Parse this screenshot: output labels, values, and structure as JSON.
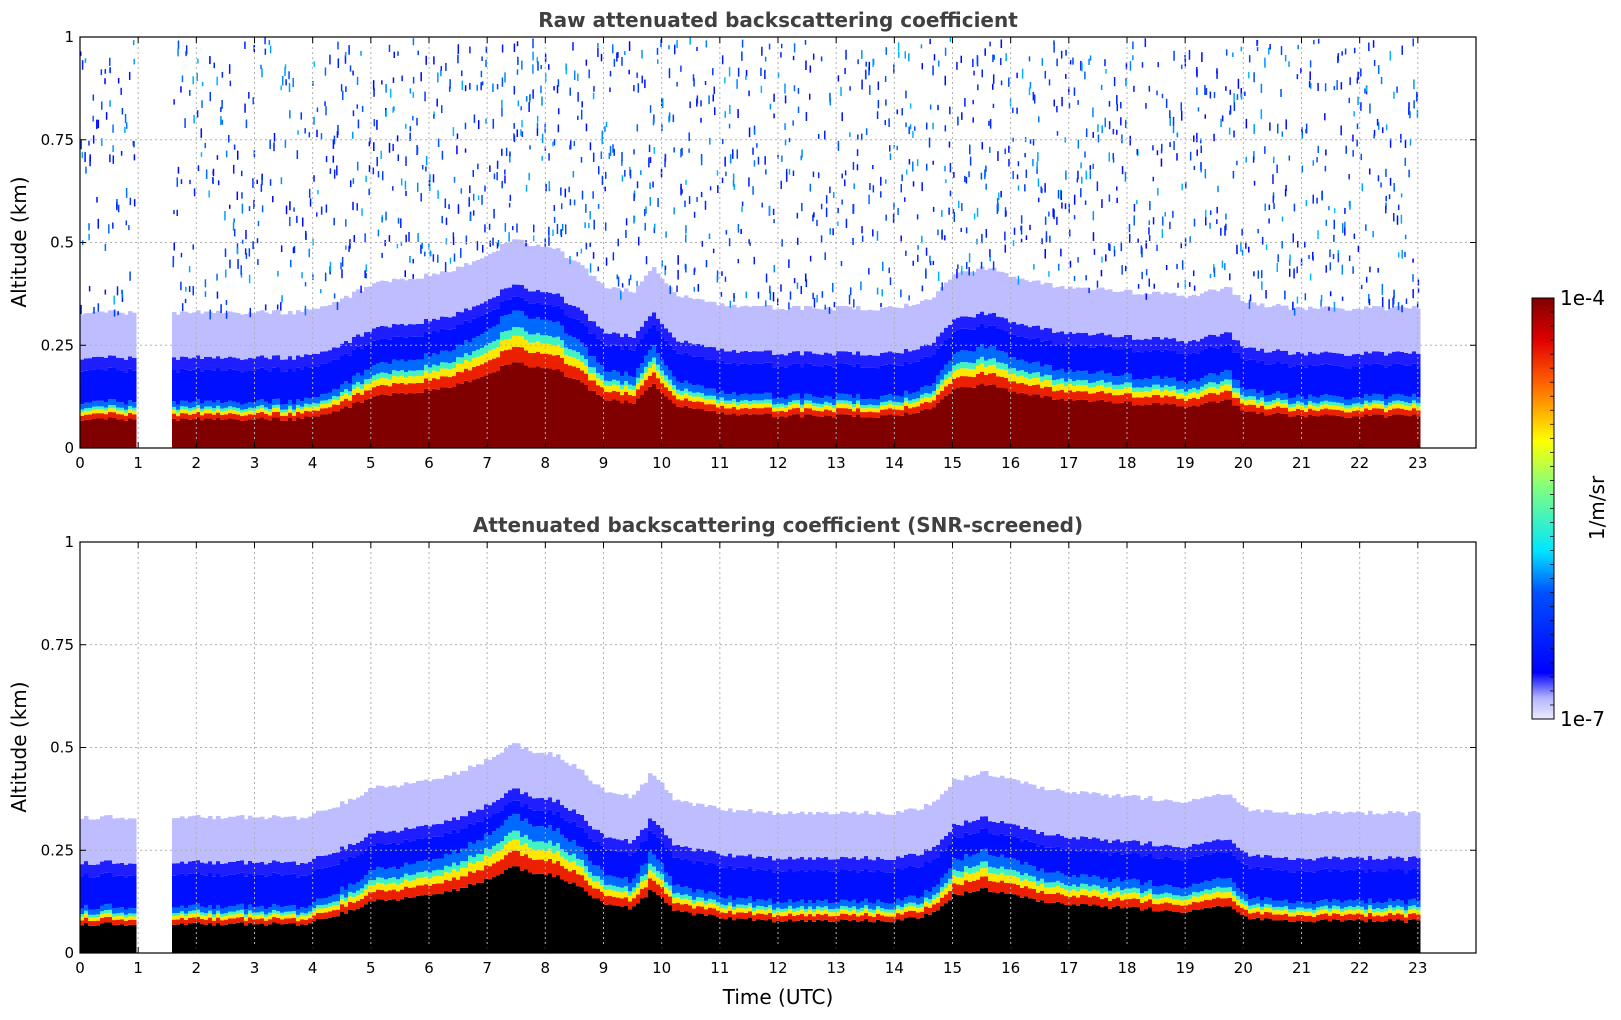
{
  "chart_data": [
    {
      "type": "heatmap",
      "title": "Raw attenuated backscattering coefficient",
      "xlabel": "",
      "ylabel": "Altitude (km)",
      "xlim": [
        0,
        24
      ],
      "ylim": [
        0,
        1
      ],
      "x_ticks": [
        "0",
        "1",
        "2",
        "3",
        "4",
        "5",
        "6",
        "7",
        "8",
        "9",
        "10",
        "11",
        "12",
        "13",
        "14",
        "15",
        "16",
        "17",
        "18",
        "19",
        "20",
        "21",
        "22",
        "23"
      ],
      "y_ticks": [
        "0",
        "0.25",
        "0.5",
        "0.75",
        "1"
      ],
      "grid": true,
      "data_end_hour": 23,
      "gap_hours": [
        [
          0.95,
          1.55
        ]
      ],
      "black_fill": false,
      "noise_density": 0.55,
      "layer_profile": {
        "hours": [
          0,
          1,
          1.6,
          2,
          3,
          3.8,
          4.2,
          4.6,
          5,
          5.5,
          6,
          6.5,
          7,
          7.4,
          7.8,
          8.2,
          8.6,
          9,
          9.5,
          9.8,
          10.2,
          11,
          12,
          13,
          14,
          14.6,
          15,
          15.5,
          16,
          16.5,
          17,
          18,
          19,
          19.7,
          20,
          21,
          22,
          23
        ],
        "top_km": [
          0.09,
          0.09,
          0.09,
          0.09,
          0.09,
          0.09,
          0.11,
          0.13,
          0.16,
          0.17,
          0.18,
          0.2,
          0.23,
          0.27,
          0.25,
          0.24,
          0.2,
          0.15,
          0.14,
          0.2,
          0.13,
          0.11,
          0.1,
          0.1,
          0.1,
          0.12,
          0.18,
          0.2,
          0.18,
          0.16,
          0.15,
          0.14,
          0.13,
          0.15,
          0.11,
          0.1,
          0.1,
          0.1
        ]
      }
    },
    {
      "type": "heatmap",
      "title": "Attenuated backscattering coefficient (SNR-screened)",
      "xlabel": "Time (UTC)",
      "ylabel": "Altitude (km)",
      "xlim": [
        0,
        24
      ],
      "ylim": [
        0,
        1
      ],
      "x_ticks": [
        "0",
        "1",
        "2",
        "3",
        "4",
        "5",
        "6",
        "7",
        "8",
        "9",
        "10",
        "11",
        "12",
        "13",
        "14",
        "15",
        "16",
        "17",
        "18",
        "19",
        "20",
        "21",
        "22",
        "23"
      ],
      "y_ticks": [
        "0",
        "0.25",
        "0.5",
        "0.75",
        "1"
      ],
      "grid": true,
      "data_end_hour": 23,
      "gap_hours": [
        [
          0.95,
          1.55
        ]
      ],
      "black_fill": true,
      "noise_density": 0.015,
      "layer_profile": {
        "hours": [
          0,
          1,
          1.6,
          2,
          3,
          3.8,
          4.2,
          4.6,
          5,
          5.5,
          6,
          6.5,
          7,
          7.4,
          7.8,
          8.2,
          8.6,
          9,
          9.5,
          9.8,
          10.2,
          11,
          12,
          13,
          14,
          14.6,
          15,
          15.5,
          16,
          16.5,
          17,
          18,
          19,
          19.7,
          20,
          21,
          22,
          23
        ],
        "top_km": [
          0.09,
          0.09,
          0.09,
          0.09,
          0.09,
          0.09,
          0.11,
          0.13,
          0.16,
          0.17,
          0.18,
          0.2,
          0.23,
          0.27,
          0.25,
          0.24,
          0.2,
          0.15,
          0.14,
          0.2,
          0.13,
          0.11,
          0.1,
          0.1,
          0.1,
          0.12,
          0.18,
          0.2,
          0.18,
          0.16,
          0.15,
          0.14,
          0.13,
          0.15,
          0.11,
          0.1,
          0.1,
          0.1
        ]
      }
    }
  ],
  "colorbar": {
    "label": "1/m/sr",
    "max_label": "1e-4",
    "min_label": "1e-7",
    "colormap": "jet",
    "low_colors": [
      "#e8e8ff",
      "#c8c8ff",
      "#a0a0ff",
      "#7070ff"
    ]
  }
}
